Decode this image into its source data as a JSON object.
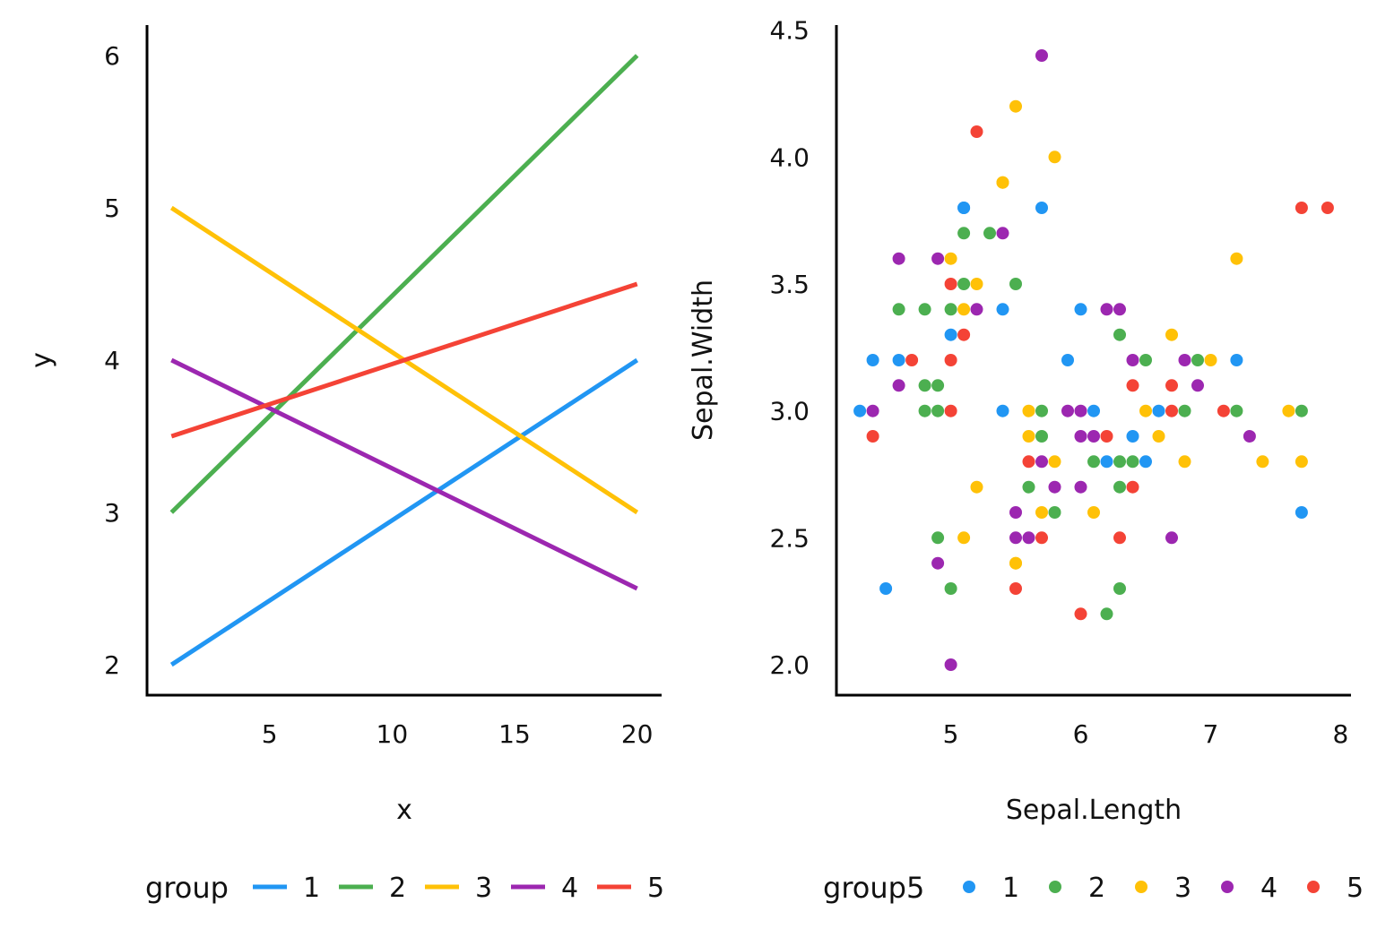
{
  "colors": {
    "1": "#2196F3",
    "2": "#4CAF50",
    "3": "#FFC107",
    "4": "#9C27B0",
    "5": "#F44336"
  },
  "chart_data": [
    {
      "type": "line",
      "xlabel": "x",
      "ylabel": "y",
      "xlim": [
        0,
        21
      ],
      "ylim": [
        1.8,
        6.2
      ],
      "xticks": [
        5,
        10,
        15,
        20
      ],
      "yticks": [
        2,
        3,
        4,
        5,
        6
      ],
      "legend": {
        "title": "group",
        "placement": "bottom",
        "entries": [
          "1",
          "2",
          "3",
          "4",
          "5"
        ]
      },
      "series": [
        {
          "name": "1",
          "x": [
            1,
            20
          ],
          "y": [
            2,
            4
          ]
        },
        {
          "name": "2",
          "x": [
            1,
            20
          ],
          "y": [
            3,
            6
          ]
        },
        {
          "name": "3",
          "x": [
            1,
            20
          ],
          "y": [
            5,
            3
          ]
        },
        {
          "name": "4",
          "x": [
            1,
            20
          ],
          "y": [
            4,
            2.5
          ]
        },
        {
          "name": "5",
          "x": [
            1,
            20
          ],
          "y": [
            3.5,
            4.5
          ]
        }
      ]
    },
    {
      "type": "scatter",
      "xlabel": "Sepal.Length",
      "ylabel": "Sepal.Width",
      "xlim": [
        4.12,
        8.08
      ],
      "ylim": [
        1.88,
        4.52
      ],
      "xticks": [
        5,
        6,
        7,
        8
      ],
      "yticks": [
        "2.0",
        "2.5",
        "3.0",
        "3.5",
        "4.0",
        "4.5"
      ],
      "legend": {
        "title": "group5",
        "placement": "bottom",
        "entries": [
          "1",
          "2",
          "3",
          "4",
          "5"
        ]
      },
      "series": [
        {
          "name": "1",
          "points": [
            [
              5.1,
              3.8
            ],
            [
              5.1,
              3.8
            ],
            [
              5.7,
              3.8
            ],
            [
              5.4,
              3.4
            ],
            [
              6.0,
              3.4
            ],
            [
              5.0,
              3.3
            ],
            [
              4.4,
              3.2
            ],
            [
              4.6,
              3.2
            ],
            [
              5.9,
              3.2
            ],
            [
              7.2,
              3.2
            ],
            [
              4.3,
              3.0
            ],
            [
              5.4,
              3.0
            ],
            [
              6.1,
              3.0
            ],
            [
              6.6,
              3.0
            ],
            [
              6.4,
              2.9
            ],
            [
              6.2,
              2.8
            ],
            [
              6.5,
              2.8
            ],
            [
              7.7,
              2.6
            ],
            [
              4.5,
              2.3
            ]
          ]
        },
        {
          "name": "2",
          "points": [
            [
              5.1,
              3.7
            ],
            [
              5.3,
              3.7
            ],
            [
              5.1,
              3.5
            ],
            [
              5.5,
              3.5
            ],
            [
              4.6,
              3.4
            ],
            [
              4.8,
              3.4
            ],
            [
              5.0,
              3.4
            ],
            [
              6.3,
              3.3
            ],
            [
              6.5,
              3.2
            ],
            [
              6.9,
              3.2
            ],
            [
              4.8,
              3.1
            ],
            [
              4.9,
              3.1
            ],
            [
              4.8,
              3.0
            ],
            [
              4.9,
              3.0
            ],
            [
              5.7,
              3.0
            ],
            [
              6.8,
              3.0
            ],
            [
              7.2,
              3.0
            ],
            [
              7.7,
              3.0
            ],
            [
              5.7,
              2.9
            ],
            [
              6.1,
              2.8
            ],
            [
              6.3,
              2.8
            ],
            [
              6.4,
              2.8
            ],
            [
              5.6,
              2.7
            ],
            [
              6.3,
              2.7
            ],
            [
              5.8,
              2.6
            ],
            [
              4.9,
              2.5
            ],
            [
              5.0,
              2.3
            ],
            [
              6.3,
              2.3
            ],
            [
              6.2,
              2.2
            ]
          ]
        },
        {
          "name": "3",
          "points": [
            [
              5.5,
              4.2
            ],
            [
              5.8,
              4.0
            ],
            [
              5.4,
              3.9
            ],
            [
              5.4,
              3.9
            ],
            [
              5.0,
              3.6
            ],
            [
              7.2,
              3.6
            ],
            [
              5.2,
              3.5
            ],
            [
              5.1,
              3.4
            ],
            [
              6.7,
              3.3
            ],
            [
              7.0,
              3.2
            ],
            [
              5.6,
              3.0
            ],
            [
              6.5,
              3.0
            ],
            [
              7.6,
              3.0
            ],
            [
              5.6,
              2.9
            ],
            [
              6.6,
              2.9
            ],
            [
              5.8,
              2.8
            ],
            [
              6.8,
              2.8
            ],
            [
              7.4,
              2.8
            ],
            [
              7.7,
              2.8
            ],
            [
              5.2,
              2.7
            ],
            [
              5.7,
              2.6
            ],
            [
              6.1,
              2.6
            ],
            [
              5.1,
              2.5
            ],
            [
              5.5,
              2.4
            ],
            [
              5.5,
              2.4
            ]
          ]
        },
        {
          "name": "4",
          "points": [
            [
              5.7,
              4.4
            ],
            [
              5.4,
              3.7
            ],
            [
              4.6,
              3.6
            ],
            [
              4.9,
              3.6
            ],
            [
              5.2,
              3.4
            ],
            [
              6.2,
              3.4
            ],
            [
              6.3,
              3.4
            ],
            [
              6.4,
              3.2
            ],
            [
              6.8,
              3.2
            ],
            [
              4.6,
              3.1
            ],
            [
              6.9,
              3.1
            ],
            [
              4.4,
              3.0
            ],
            [
              5.9,
              3.0
            ],
            [
              6.0,
              3.0
            ],
            [
              6.1,
              2.9
            ],
            [
              6.0,
              2.9
            ],
            [
              7.3,
              2.9
            ],
            [
              5.7,
              2.8
            ],
            [
              5.8,
              2.7
            ],
            [
              6.0,
              2.7
            ],
            [
              5.5,
              2.6
            ],
            [
              5.5,
              2.5
            ],
            [
              5.6,
              2.5
            ],
            [
              6.7,
              2.5
            ],
            [
              4.9,
              2.4
            ],
            [
              5.0,
              2.0
            ]
          ]
        },
        {
          "name": "5",
          "points": [
            [
              5.2,
              4.1
            ],
            [
              7.7,
              3.8
            ],
            [
              7.9,
              3.8
            ],
            [
              5.0,
              3.5
            ],
            [
              5.1,
              3.3
            ],
            [
              4.7,
              3.2
            ],
            [
              5.0,
              3.2
            ],
            [
              6.4,
              3.1
            ],
            [
              6.7,
              3.1
            ],
            [
              5.0,
              3.0
            ],
            [
              6.7,
              3.0
            ],
            [
              7.1,
              3.0
            ],
            [
              4.4,
              2.9
            ],
            [
              6.2,
              2.9
            ],
            [
              5.6,
              2.8
            ],
            [
              6.4,
              2.7
            ],
            [
              5.7,
              2.5
            ],
            [
              6.3,
              2.5
            ],
            [
              5.5,
              2.3
            ],
            [
              6.0,
              2.2
            ]
          ]
        }
      ]
    }
  ]
}
